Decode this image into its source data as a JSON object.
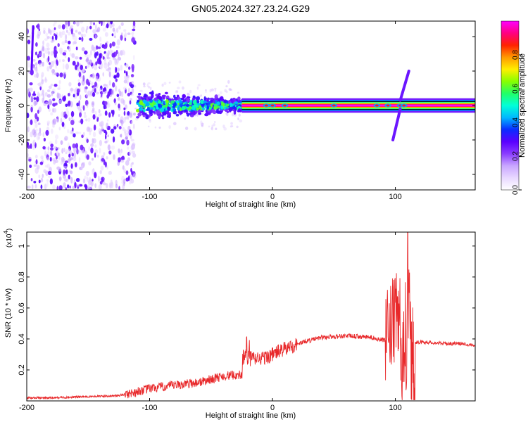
{
  "title": "GN05.2024.327.23.24.G29",
  "chart_data": [
    {
      "type": "heatmap",
      "title": "GN05.2024.327.23.24.G29",
      "xlabel": "Height of straight line (km)",
      "ylabel": "Frequency (Hz)",
      "xlim": [
        -200,
        165
      ],
      "ylim": [
        -49,
        49
      ],
      "xticks": [
        -200,
        -100,
        0,
        100
      ],
      "yticks": [
        -40,
        -20,
        0,
        20,
        40
      ],
      "colorbar": {
        "label": "Normalized spectral amplitude",
        "range": [
          0,
          1
        ],
        "ticks": [
          0.0,
          0.2,
          0.4,
          0.6,
          0.8
        ],
        "colormap": [
          "#ffffff",
          "#e8d8ff",
          "#c9a6ff",
          "#8a3cff",
          "#5a00ff",
          "#0a2cff",
          "#00b8ff",
          "#00ffd8",
          "#22ff66",
          "#88ff00",
          "#ffee00",
          "#ff9900",
          "#ff2200",
          "#ff0080",
          "#ff00ff"
        ]
      },
      "features": {
        "noise_cloud": {
          "x_range": [
            -200,
            -112
          ],
          "freq_range": [
            -49,
            49
          ],
          "amplitude": "low (0.05-0.3)"
        },
        "spreading_band": {
          "x_range": [
            -110,
            -25
          ],
          "freq_halfwidth": [
            9,
            4
          ],
          "amplitude": "0.3-0.7"
        },
        "center_line": {
          "x_range": [
            -25,
            165
          ],
          "freq": 0,
          "amplitude": "1.0"
        },
        "left_edge_streak": {
          "x": -196,
          "freq_range": [
            21,
            46
          ]
        },
        "diagonal_streaks": [
          {
            "x_range": [
              98,
              104
            ],
            "freq_range": [
              -20,
              -2
            ]
          },
          {
            "x_range": [
              104,
              111
            ],
            "freq_range": [
              3,
              20
            ]
          }
        ],
        "blob_at": [
          -5,
          0,
          10,
          50,
          85,
          94,
          104,
          107
        ]
      }
    },
    {
      "type": "line",
      "xlabel": "Height of straight line (km)",
      "ylabel": "SNR (10 * v/v)",
      "y_multiplier": "(x10",
      "y_multiplier_exp": "4",
      "y_multiplier_close": ")",
      "xlim": [
        -200,
        165
      ],
      "ylim": [
        0,
        1.09
      ],
      "xticks": [
        -200,
        -100,
        0,
        100
      ],
      "yticks": [
        0.2,
        0.4,
        0.6,
        0.8,
        1
      ],
      "line_color": "#e8282a",
      "series": [
        {
          "x": [
            -200,
            -180,
            -160,
            -140,
            -125,
            -115,
            -100,
            -80,
            -60,
            -40,
            -25,
            -22,
            -15,
            -5,
            5,
            15,
            25,
            40,
            60,
            80,
            92,
            98,
            102,
            106,
            108,
            110,
            113,
            116,
            125,
            140,
            155,
            165
          ],
          "y": [
            0.02,
            0.02,
            0.025,
            0.03,
            0.035,
            0.05,
            0.08,
            0.1,
            0.12,
            0.16,
            0.17,
            0.32,
            0.27,
            0.28,
            0.32,
            0.35,
            0.38,
            0.41,
            0.42,
            0.41,
            0.39,
            0.5,
            0.55,
            0.62,
            0.7,
            1.08,
            0.62,
            0.38,
            0.38,
            0.37,
            0.37,
            0.36
          ]
        }
      ]
    }
  ]
}
